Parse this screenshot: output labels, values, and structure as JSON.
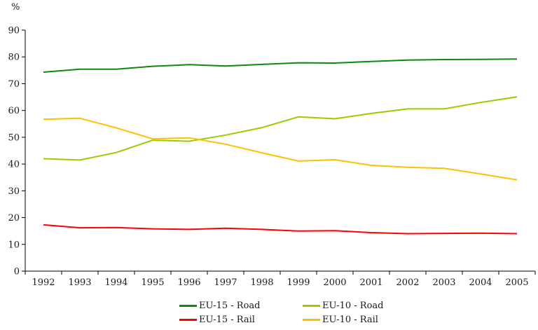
{
  "chart": {
    "unit_label": "%",
    "background_color": "#ffffff",
    "axis_color": "#000000",
    "text_color": "#1a1a1a"
  },
  "chart_data": {
    "type": "line",
    "title": "",
    "xlabel": "",
    "ylabel": "%",
    "ylim": [
      0,
      90
    ],
    "ytick_interval": 10,
    "ytick_labels": [
      "0",
      "10",
      "20",
      "30",
      "40",
      "50",
      "60",
      "70",
      "80",
      "90"
    ],
    "grid": false,
    "legend_position": "bottom",
    "categories": [
      "1992",
      "1993",
      "1994",
      "1995",
      "1996",
      "1997",
      "1998",
      "1999",
      "2000",
      "2001",
      "2002",
      "2003",
      "2004",
      "2005"
    ],
    "series": [
      {
        "name": "EU-15 - Road",
        "color": "#0b8a0b",
        "values": [
          74.3,
          75.4,
          75.4,
          76.5,
          77.1,
          76.6,
          77.2,
          77.8,
          77.7,
          78.3,
          78.8,
          79.0,
          79.1,
          79.2
        ]
      },
      {
        "name": "EU-10 - Road",
        "color": "#99cc00",
        "values": [
          42.0,
          41.5,
          44.3,
          48.9,
          48.5,
          50.8,
          53.6,
          57.6,
          56.9,
          58.9,
          60.6,
          60.6,
          63.0,
          65.1
        ]
      },
      {
        "name": "EU-15 - Rail",
        "color": "#ff0000",
        "values": [
          17.3,
          16.2,
          16.3,
          15.8,
          15.6,
          16.0,
          15.6,
          15.0,
          15.1,
          14.4,
          14.0,
          14.1,
          14.2,
          14.0
        ]
      },
      {
        "name": "EU-10 - Rail",
        "color": "#ffc000",
        "values": [
          56.7,
          57.1,
          53.5,
          49.4,
          49.8,
          47.4,
          44.2,
          41.1,
          41.6,
          39.5,
          38.8,
          38.4,
          36.3,
          34.1
        ]
      }
    ]
  }
}
